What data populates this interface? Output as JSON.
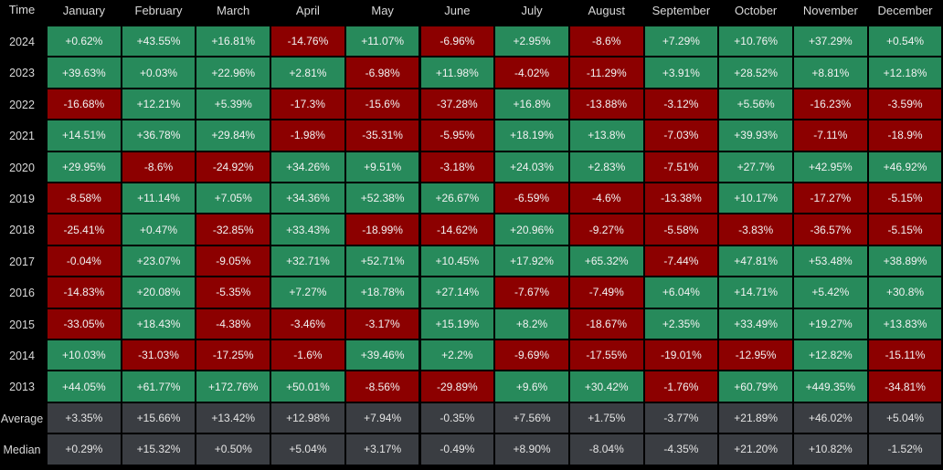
{
  "chart_data": {
    "type": "heatmap",
    "corner_label": "Time",
    "columns": [
      "January",
      "February",
      "March",
      "April",
      "May",
      "June",
      "July",
      "August",
      "September",
      "October",
      "November",
      "December"
    ],
    "rows": [
      {
        "label": "2024",
        "values": [
          "+0.62%",
          "+43.55%",
          "+16.81%",
          "-14.76%",
          "+11.07%",
          "-6.96%",
          "+2.95%",
          "-8.6%",
          "+7.29%",
          "+10.76%",
          "+37.29%",
          "+0.54%"
        ]
      },
      {
        "label": "2023",
        "values": [
          "+39.63%",
          "+0.03%",
          "+22.96%",
          "+2.81%",
          "-6.98%",
          "+11.98%",
          "-4.02%",
          "-11.29%",
          "+3.91%",
          "+28.52%",
          "+8.81%",
          "+12.18%"
        ]
      },
      {
        "label": "2022",
        "values": [
          "-16.68%",
          "+12.21%",
          "+5.39%",
          "-17.3%",
          "-15.6%",
          "-37.28%",
          "+16.8%",
          "-13.88%",
          "-3.12%",
          "+5.56%",
          "-16.23%",
          "-3.59%"
        ]
      },
      {
        "label": "2021",
        "values": [
          "+14.51%",
          "+36.78%",
          "+29.84%",
          "-1.98%",
          "-35.31%",
          "-5.95%",
          "+18.19%",
          "+13.8%",
          "-7.03%",
          "+39.93%",
          "-7.11%",
          "-18.9%"
        ]
      },
      {
        "label": "2020",
        "values": [
          "+29.95%",
          "-8.6%",
          "-24.92%",
          "+34.26%",
          "+9.51%",
          "-3.18%",
          "+24.03%",
          "+2.83%",
          "-7.51%",
          "+27.7%",
          "+42.95%",
          "+46.92%"
        ]
      },
      {
        "label": "2019",
        "values": [
          "-8.58%",
          "+11.14%",
          "+7.05%",
          "+34.36%",
          "+52.38%",
          "+26.67%",
          "-6.59%",
          "-4.6%",
          "-13.38%",
          "+10.17%",
          "-17.27%",
          "-5.15%"
        ]
      },
      {
        "label": "2018",
        "values": [
          "-25.41%",
          "+0.47%",
          "-32.85%",
          "+33.43%",
          "-18.99%",
          "-14.62%",
          "+20.96%",
          "-9.27%",
          "-5.58%",
          "-3.83%",
          "-36.57%",
          "-5.15%"
        ]
      },
      {
        "label": "2017",
        "values": [
          "-0.04%",
          "+23.07%",
          "-9.05%",
          "+32.71%",
          "+52.71%",
          "+10.45%",
          "+17.92%",
          "+65.32%",
          "-7.44%",
          "+47.81%",
          "+53.48%",
          "+38.89%"
        ]
      },
      {
        "label": "2016",
        "values": [
          "-14.83%",
          "+20.08%",
          "-5.35%",
          "+7.27%",
          "+18.78%",
          "+27.14%",
          "-7.67%",
          "-7.49%",
          "+6.04%",
          "+14.71%",
          "+5.42%",
          "+30.8%"
        ]
      },
      {
        "label": "2015",
        "values": [
          "-33.05%",
          "+18.43%",
          "-4.38%",
          "-3.46%",
          "-3.17%",
          "+15.19%",
          "+8.2%",
          "-18.67%",
          "+2.35%",
          "+33.49%",
          "+19.27%",
          "+13.83%"
        ]
      },
      {
        "label": "2014",
        "values": [
          "+10.03%",
          "-31.03%",
          "-17.25%",
          "-1.6%",
          "+39.46%",
          "+2.2%",
          "-9.69%",
          "-17.55%",
          "-19.01%",
          "-12.95%",
          "+12.82%",
          "-15.11%"
        ]
      },
      {
        "label": "2013",
        "values": [
          "+44.05%",
          "+61.77%",
          "+172.76%",
          "+50.01%",
          "-8.56%",
          "-29.89%",
          "+9.6%",
          "+30.42%",
          "-1.76%",
          "+60.79%",
          "+449.35%",
          "-34.81%"
        ]
      },
      {
        "label": "Average",
        "values": [
          "+3.35%",
          "+15.66%",
          "+13.42%",
          "+12.98%",
          "+7.94%",
          "-0.35%",
          "+7.56%",
          "+1.75%",
          "-3.77%",
          "+21.89%",
          "+46.02%",
          "+5.04%"
        ]
      },
      {
        "label": "Median",
        "values": [
          "+0.29%",
          "+15.32%",
          "+0.50%",
          "+5.04%",
          "+3.17%",
          "-0.49%",
          "+8.90%",
          "-8.04%",
          "-4.35%",
          "+21.20%",
          "+10.82%",
          "-1.52%"
        ]
      }
    ],
    "colors": {
      "positive": "#278a5b",
      "negative": "#8c0000",
      "summary": "#3a3d42",
      "background": "#000000",
      "text": "#f2f2f2"
    }
  }
}
